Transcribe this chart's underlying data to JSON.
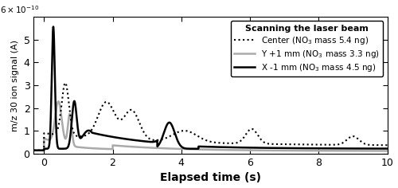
{
  "title": "Scanning the laser beam",
  "xlabel": "Elapsed time (s)",
  "ylabel": "m/z 30 ion signal (A)",
  "xlim": [
    -0.3,
    10
  ],
  "ylim": [
    0,
    6e-10
  ],
  "legend_entries": [
    "Center (NO$_3$ mass 5.4 ng)",
    "Y +1 mm (NO$_3$ mass 3.3 ng)",
    "X -1 mm (NO$_3$ mass 4.5 ng)"
  ],
  "background_color": "#ffffff"
}
